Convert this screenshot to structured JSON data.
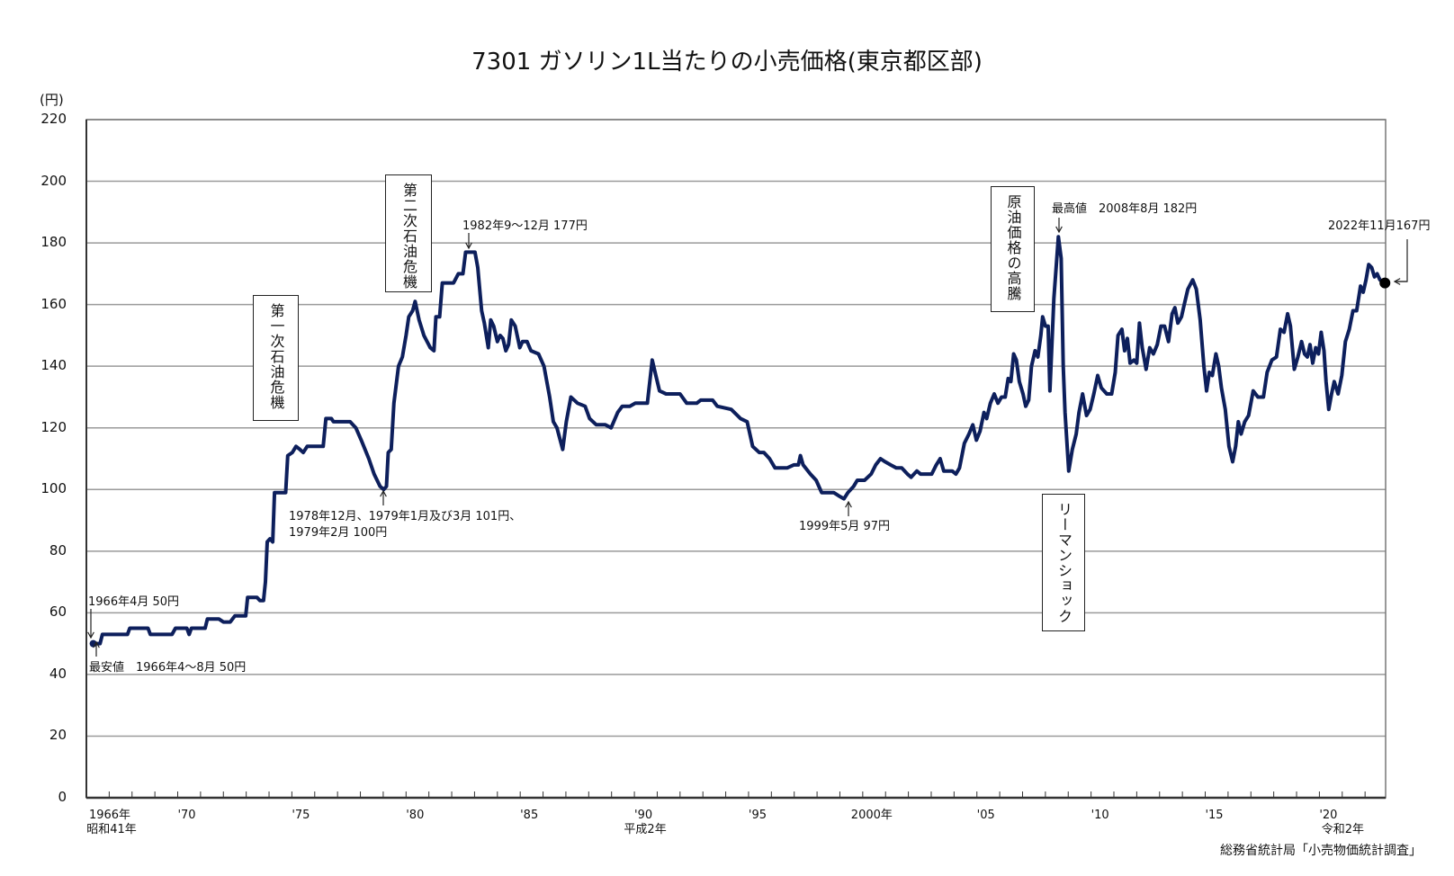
{
  "chart_data": {
    "type": "line",
    "title": "7301 ガソリン1L当たりの小売価格(東京都区部)",
    "ylabel": "(円)",
    "ylim": [
      0,
      220
    ],
    "yticks": [
      0,
      20,
      40,
      60,
      80,
      100,
      120,
      140,
      160,
      180,
      200,
      220
    ],
    "xlim": [
      1966,
      2022.9
    ],
    "grid": "horizontal",
    "line_color": "#0d1f5c",
    "xtick_labels": [
      {
        "year": 1966,
        "label": "1966年",
        "sub": "昭和41年"
      },
      {
        "year": 1970,
        "label": "'70"
      },
      {
        "year": 1975,
        "label": "'75"
      },
      {
        "year": 1980,
        "label": "'80"
      },
      {
        "year": 1985,
        "label": "'85"
      },
      {
        "year": 1990,
        "label": "'90",
        "sub": "平成2年"
      },
      {
        "year": 1995,
        "label": "'95"
      },
      {
        "year": 2000,
        "label": "2000年"
      },
      {
        "year": 2005,
        "label": "'05"
      },
      {
        "year": 2010,
        "label": "'10"
      },
      {
        "year": 2015,
        "label": "'15"
      },
      {
        "year": 2020,
        "label": "'20",
        "sub": "令和2年"
      }
    ],
    "series": [
      {
        "points": [
          [
            1966.3,
            50
          ],
          [
            1966.6,
            50
          ],
          [
            1966.7,
            53
          ],
          [
            1967.8,
            53
          ],
          [
            1967.9,
            55
          ],
          [
            1968.7,
            55
          ],
          [
            1968.8,
            53
          ],
          [
            1969.75,
            53
          ],
          [
            1969.9,
            55
          ],
          [
            1970.4,
            55
          ],
          [
            1970.5,
            53
          ],
          [
            1970.6,
            55
          ],
          [
            1971.2,
            55
          ],
          [
            1971.3,
            58
          ],
          [
            1971.8,
            58
          ],
          [
            1972.0,
            57
          ],
          [
            1972.3,
            57
          ],
          [
            1972.5,
            59
          ],
          [
            1972.98,
            59
          ],
          [
            1973.06,
            65
          ],
          [
            1973.47,
            65
          ],
          [
            1973.6,
            64
          ],
          [
            1973.76,
            64
          ],
          [
            1973.84,
            70
          ],
          [
            1973.92,
            83
          ],
          [
            1974.04,
            84
          ],
          [
            1974.16,
            83
          ],
          [
            1974.24,
            99
          ],
          [
            1974.73,
            99
          ],
          [
            1974.82,
            111
          ],
          [
            1975.02,
            112
          ],
          [
            1975.18,
            114
          ],
          [
            1975.35,
            113
          ],
          [
            1975.5,
            112
          ],
          [
            1975.67,
            114
          ],
          [
            1976.37,
            114
          ],
          [
            1976.49,
            123
          ],
          [
            1976.73,
            123
          ],
          [
            1976.82,
            122
          ],
          [
            1977.55,
            122
          ],
          [
            1977.8,
            120
          ],
          [
            1978.04,
            116
          ],
          [
            1978.37,
            110
          ],
          [
            1978.6,
            105
          ],
          [
            1978.86,
            101
          ],
          [
            1979.02,
            100
          ],
          [
            1979.14,
            101
          ],
          [
            1979.22,
            112
          ],
          [
            1979.35,
            113
          ],
          [
            1979.47,
            128
          ],
          [
            1979.67,
            140
          ],
          [
            1979.84,
            143
          ],
          [
            1980.0,
            150
          ],
          [
            1980.12,
            156
          ],
          [
            1980.29,
            158
          ],
          [
            1980.4,
            161
          ],
          [
            1980.57,
            155
          ],
          [
            1980.78,
            150
          ],
          [
            1981.06,
            146
          ],
          [
            1981.22,
            145
          ],
          [
            1981.31,
            156
          ],
          [
            1981.47,
            156
          ],
          [
            1981.59,
            167
          ],
          [
            1982.08,
            167
          ],
          [
            1982.29,
            170
          ],
          [
            1982.49,
            170
          ],
          [
            1982.61,
            177
          ],
          [
            1983.02,
            177
          ],
          [
            1983.14,
            172
          ],
          [
            1983.31,
            158
          ],
          [
            1983.43,
            154
          ],
          [
            1983.6,
            146
          ],
          [
            1983.71,
            155
          ],
          [
            1983.84,
            153
          ],
          [
            1984.0,
            148
          ],
          [
            1984.12,
            150
          ],
          [
            1984.24,
            149
          ],
          [
            1984.37,
            145
          ],
          [
            1984.49,
            147
          ],
          [
            1984.61,
            155
          ],
          [
            1984.78,
            153
          ],
          [
            1984.98,
            146
          ],
          [
            1985.1,
            148
          ],
          [
            1985.3,
            148
          ],
          [
            1985.47,
            145
          ],
          [
            1985.8,
            144
          ],
          [
            1986.04,
            140
          ],
          [
            1986.29,
            130
          ],
          [
            1986.45,
            122
          ],
          [
            1986.61,
            120
          ],
          [
            1986.86,
            113
          ],
          [
            1987.02,
            122
          ],
          [
            1987.22,
            130
          ],
          [
            1987.51,
            128
          ],
          [
            1987.84,
            127
          ],
          [
            1988.04,
            123
          ],
          [
            1988.33,
            121
          ],
          [
            1988.73,
            121
          ],
          [
            1988.98,
            120
          ],
          [
            1989.27,
            125
          ],
          [
            1989.47,
            127
          ],
          [
            1989.8,
            127
          ],
          [
            1990.04,
            128
          ],
          [
            1990.57,
            128
          ],
          [
            1990.78,
            142
          ],
          [
            1990.94,
            137
          ],
          [
            1991.1,
            132
          ],
          [
            1991.39,
            131
          ],
          [
            1992.0,
            131
          ],
          [
            1992.29,
            128
          ],
          [
            1992.73,
            128
          ],
          [
            1992.9,
            129
          ],
          [
            1993.43,
            129
          ],
          [
            1993.63,
            127
          ],
          [
            1994.24,
            126
          ],
          [
            1994.65,
            123
          ],
          [
            1994.94,
            122
          ],
          [
            1995.18,
            114
          ],
          [
            1995.47,
            112
          ],
          [
            1995.67,
            112
          ],
          [
            1995.92,
            110
          ],
          [
            1996.16,
            107
          ],
          [
            1996.69,
            107
          ],
          [
            1996.98,
            108
          ],
          [
            1997.18,
            108
          ],
          [
            1997.27,
            111
          ],
          [
            1997.39,
            108
          ],
          [
            1997.71,
            105
          ],
          [
            1997.96,
            103
          ],
          [
            1998.2,
            99
          ],
          [
            1998.73,
            99
          ],
          [
            1998.94,
            98
          ],
          [
            1999.18,
            97
          ],
          [
            1999.35,
            99
          ],
          [
            1999.6,
            101
          ],
          [
            1999.76,
            103
          ],
          [
            2000.08,
            103
          ],
          [
            2000.37,
            105
          ],
          [
            2000.57,
            108
          ],
          [
            2000.78,
            110
          ],
          [
            2000.98,
            109
          ],
          [
            2001.22,
            108
          ],
          [
            2001.47,
            107
          ],
          [
            2001.71,
            107
          ],
          [
            2001.96,
            105
          ],
          [
            2002.12,
            104
          ],
          [
            2002.37,
            106
          ],
          [
            2002.53,
            105
          ],
          [
            2003.02,
            105
          ],
          [
            2003.22,
            108
          ],
          [
            2003.39,
            110
          ],
          [
            2003.55,
            106
          ],
          [
            2003.92,
            106
          ],
          [
            2004.08,
            105
          ],
          [
            2004.24,
            107
          ],
          [
            2004.45,
            115
          ],
          [
            2004.65,
            118
          ],
          [
            2004.82,
            121
          ],
          [
            2004.98,
            116
          ],
          [
            2005.14,
            119
          ],
          [
            2005.31,
            125
          ],
          [
            2005.43,
            123
          ],
          [
            2005.59,
            128
          ],
          [
            2005.76,
            131
          ],
          [
            2005.92,
            128
          ],
          [
            2006.08,
            130
          ],
          [
            2006.24,
            130
          ],
          [
            2006.37,
            136
          ],
          [
            2006.49,
            135
          ],
          [
            2006.61,
            144
          ],
          [
            2006.73,
            142
          ],
          [
            2006.86,
            135
          ],
          [
            2007.02,
            131
          ],
          [
            2007.14,
            127
          ],
          [
            2007.27,
            129
          ],
          [
            2007.39,
            140
          ],
          [
            2007.55,
            145
          ],
          [
            2007.67,
            143
          ],
          [
            2007.8,
            150
          ],
          [
            2007.88,
            156
          ],
          [
            2008.0,
            153
          ],
          [
            2008.12,
            153
          ],
          [
            2008.2,
            132
          ],
          [
            2008.37,
            162
          ],
          [
            2008.57,
            182
          ],
          [
            2008.69,
            175
          ],
          [
            2008.78,
            140
          ],
          [
            2008.86,
            125
          ],
          [
            2009.02,
            106
          ],
          [
            2009.18,
            113
          ],
          [
            2009.35,
            118
          ],
          [
            2009.47,
            125
          ],
          [
            2009.63,
            131
          ],
          [
            2009.8,
            124
          ],
          [
            2009.96,
            126
          ],
          [
            2010.12,
            131
          ],
          [
            2010.29,
            137
          ],
          [
            2010.45,
            133
          ],
          [
            2010.69,
            131
          ],
          [
            2010.9,
            131
          ],
          [
            2011.06,
            138
          ],
          [
            2011.18,
            150
          ],
          [
            2011.35,
            152
          ],
          [
            2011.47,
            145
          ],
          [
            2011.59,
            149
          ],
          [
            2011.71,
            141
          ],
          [
            2011.88,
            142
          ],
          [
            2012.0,
            141
          ],
          [
            2012.12,
            154
          ],
          [
            2012.24,
            146
          ],
          [
            2012.41,
            139
          ],
          [
            2012.57,
            146
          ],
          [
            2012.73,
            144
          ],
          [
            2012.9,
            147
          ],
          [
            2013.06,
            153
          ],
          [
            2013.22,
            153
          ],
          [
            2013.39,
            148
          ],
          [
            2013.55,
            157
          ],
          [
            2013.67,
            159
          ],
          [
            2013.8,
            154
          ],
          [
            2013.96,
            156
          ],
          [
            2014.08,
            160
          ],
          [
            2014.24,
            165
          ],
          [
            2014.45,
            168
          ],
          [
            2014.61,
            165
          ],
          [
            2014.78,
            155
          ],
          [
            2014.94,
            140
          ],
          [
            2015.06,
            132
          ],
          [
            2015.18,
            138
          ],
          [
            2015.31,
            137
          ],
          [
            2015.47,
            144
          ],
          [
            2015.59,
            140
          ],
          [
            2015.71,
            133
          ],
          [
            2015.88,
            126
          ],
          [
            2016.04,
            114
          ],
          [
            2016.2,
            109
          ],
          [
            2016.33,
            114
          ],
          [
            2016.45,
            122
          ],
          [
            2016.57,
            118
          ],
          [
            2016.73,
            122
          ],
          [
            2016.9,
            124
          ],
          [
            2017.1,
            132
          ],
          [
            2017.31,
            130
          ],
          [
            2017.55,
            130
          ],
          [
            2017.71,
            138
          ],
          [
            2017.92,
            142
          ],
          [
            2018.12,
            143
          ],
          [
            2018.29,
            152
          ],
          [
            2018.45,
            151
          ],
          [
            2018.61,
            157
          ],
          [
            2018.73,
            153
          ],
          [
            2018.9,
            139
          ],
          [
            2019.06,
            143
          ],
          [
            2019.22,
            148
          ],
          [
            2019.35,
            144
          ],
          [
            2019.47,
            143
          ],
          [
            2019.59,
            147
          ],
          [
            2019.71,
            141
          ],
          [
            2019.84,
            146
          ],
          [
            2019.96,
            144
          ],
          [
            2020.08,
            151
          ],
          [
            2020.2,
            145
          ],
          [
            2020.29,
            135
          ],
          [
            2020.41,
            126
          ],
          [
            2020.53,
            131
          ],
          [
            2020.65,
            135
          ],
          [
            2020.82,
            131
          ],
          [
            2020.98,
            137
          ],
          [
            2021.14,
            148
          ],
          [
            2021.31,
            152
          ],
          [
            2021.47,
            158
          ],
          [
            2021.63,
            158
          ],
          [
            2021.8,
            166
          ],
          [
            2021.92,
            164
          ],
          [
            2022.04,
            168
          ],
          [
            2022.16,
            173
          ],
          [
            2022.29,
            172
          ],
          [
            2022.41,
            169
          ],
          [
            2022.53,
            170
          ],
          [
            2022.65,
            168
          ],
          [
            2022.87,
            167
          ]
        ]
      }
    ],
    "annotations": {
      "first": "1966年4月 50円",
      "lowest": "最安値　1966年4～8月 50円",
      "crisis1": "第一次石油危機",
      "crisis2": "第二次石油危機",
      "peak1982": "1982年9～12月 177円",
      "low1979_line1": "1978年12月、1979年1月及び3月 101円、",
      "low1979_line2": "1979年2月 100円",
      "low1999": "1999年5月 97円",
      "crude": "原油価格の高騰",
      "highest": "最高値　2008年8月 182円",
      "lehman": "リーマンショック",
      "latest": "2022年11月167円"
    },
    "source": "総務省統計局「小売物価統計調査」"
  }
}
